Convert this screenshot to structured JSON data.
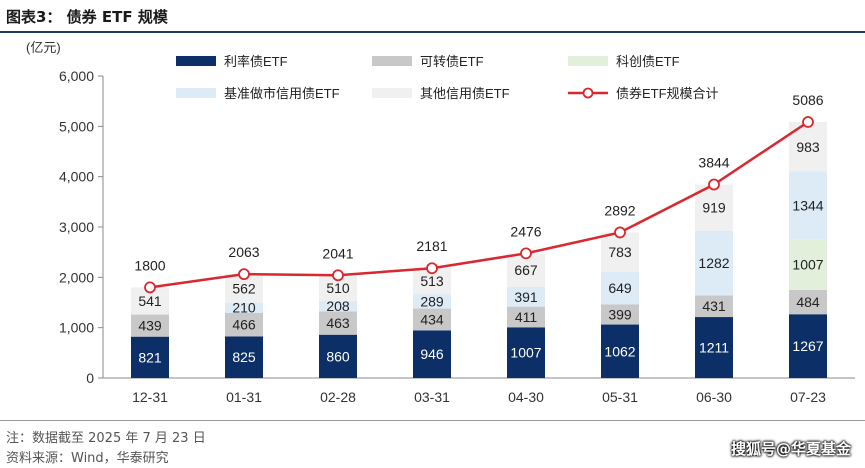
{
  "header": {
    "title": "图表3： 债券 ETF 规模"
  },
  "footer": {
    "note": "注：数据截至 2025 年 7 月 23 日",
    "source": "资料来源：Wind，华泰研究",
    "watermark": "搜狐号@华夏基金"
  },
  "colors": {
    "s0": "#0b2f66",
    "s1": "#c8c8c8",
    "s2": "#e2efda",
    "s3": "#ddebf7",
    "s4": "#f0f0f0",
    "line": "#d9282f"
  },
  "chart_data": {
    "type": "bar",
    "stacked": true,
    "unit_label": "(亿元)",
    "categories": [
      "12-31",
      "01-31",
      "02-28",
      "03-31",
      "04-30",
      "05-31",
      "06-30",
      "07-23"
    ],
    "ylim": [
      0,
      6000
    ],
    "yticks": [
      "0",
      "1,000",
      "2,000",
      "3,000",
      "4,000",
      "5,000",
      "6,000"
    ],
    "legend_position": "top",
    "series": [
      {
        "name": "利率债ETF",
        "values": [
          821,
          825,
          860,
          946,
          1007,
          1062,
          1211,
          1267
        ]
      },
      {
        "name": "可转债ETF",
        "values": [
          439,
          466,
          463,
          434,
          411,
          399,
          431,
          484
        ]
      },
      {
        "name": "科创债ETF",
        "values": [
          0,
          0,
          0,
          0,
          0,
          0,
          0,
          1007
        ]
      },
      {
        "name": "基准做市信用债ETF",
        "values": [
          0,
          210,
          208,
          289,
          391,
          649,
          1282,
          1344
        ]
      },
      {
        "name": "其他信用债ETF",
        "values": [
          541,
          562,
          510,
          513,
          667,
          783,
          919,
          983
        ]
      }
    ],
    "line": {
      "name": "债券ETF规模合计",
      "values": [
        1800,
        2063,
        2041,
        2181,
        2476,
        2892,
        3844,
        5086
      ]
    }
  }
}
